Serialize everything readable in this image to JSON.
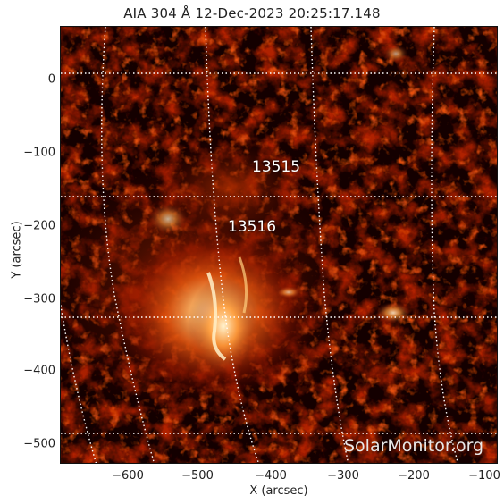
{
  "image": {
    "title": "AIA 304 Å 12-Dec-2023 20:25:17.148",
    "xlabel": "X (arcsec)",
    "ylabel": "Y (arcsec)",
    "x_ticks": [
      "−600",
      "−500",
      "−400",
      "−300",
      "−200",
      "−100"
    ],
    "y_ticks": [
      "0",
      "−100",
      "−200",
      "−300",
      "−400",
      "−500"
    ],
    "regions": [
      {
        "label": "13515"
      },
      {
        "label": "13516"
      }
    ],
    "watermark": "SolarMonitor.org",
    "colormap": [
      "#000000",
      "#5a0000",
      "#a21a00",
      "#e2520a",
      "#ffa040",
      "#fff4d0"
    ],
    "grid_color": "#ffffff"
  }
}
